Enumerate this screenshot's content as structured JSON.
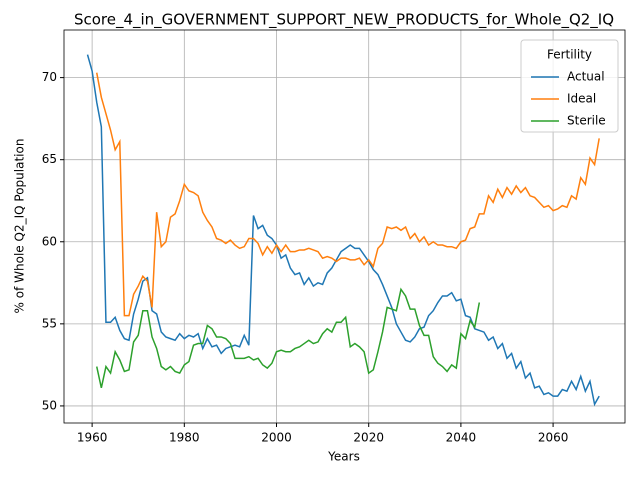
{
  "chart_data": {
    "type": "line",
    "title": "Score_4_in_GOVERNMENT_SUPPORT_NEW_PRODUCTS_for_Whole_Q2_IQ",
    "x_label": "Years",
    "y_label": "% of Whole Q2_IQ Population",
    "legend_title": "Fertility",
    "legend_position": "upper right",
    "grid": true,
    "xlim": [
      1953.9,
      2075.6
    ],
    "ylim": [
      48.96,
      72.9
    ],
    "xticks": [
      1960,
      1980,
      2000,
      2020,
      2040,
      2060
    ],
    "yticks": [
      50,
      55,
      60,
      65,
      70
    ],
    "x": [
      1959,
      1960,
      1961,
      1962,
      1963,
      1964,
      1965,
      1966,
      1967,
      1968,
      1969,
      1970,
      1971,
      1972,
      1973,
      1974,
      1975,
      1976,
      1977,
      1978,
      1979,
      1980,
      1981,
      1982,
      1983,
      1984,
      1985,
      1986,
      1987,
      1988,
      1989,
      1990,
      1991,
      1992,
      1993,
      1994,
      1995,
      1996,
      1997,
      1998,
      1999,
      2000,
      2001,
      2002,
      2003,
      2004,
      2005,
      2006,
      2007,
      2008,
      2009,
      2010,
      2011,
      2012,
      2013,
      2014,
      2015,
      2016,
      2017,
      2018,
      2019,
      2020,
      2021,
      2022,
      2023,
      2024,
      2025,
      2026,
      2027,
      2028,
      2029,
      2030,
      2031,
      2032,
      2033,
      2034,
      2035,
      2036,
      2037,
      2038,
      2039,
      2040,
      2041,
      2042,
      2043,
      2044,
      2045,
      2046,
      2047,
      2048,
      2049,
      2050,
      2051,
      2052,
      2053,
      2054,
      2055,
      2056,
      2057,
      2058,
      2059,
      2060,
      2061,
      2062,
      2063,
      2064,
      2065,
      2066,
      2067,
      2068,
      2069,
      2070
    ],
    "series": [
      {
        "name": "Actual",
        "color": "#1f77b4",
        "values": [
          71.4,
          70.4,
          68.5,
          67.0,
          55.1,
          55.1,
          55.4,
          54.6,
          54.1,
          54.0,
          55.6,
          56.5,
          57.6,
          57.8,
          55.8,
          55.6,
          54.5,
          54.2,
          54.1,
          54.0,
          54.4,
          54.1,
          54.3,
          54.2,
          54.4,
          53.5,
          54.1,
          53.6,
          53.7,
          53.2,
          53.5,
          53.6,
          53.7,
          53.6,
          54.3,
          53.7,
          61.6,
          60.8,
          61.0,
          60.4,
          60.2,
          59.8,
          59.0,
          59.2,
          58.4,
          58.0,
          58.1,
          57.4,
          57.8,
          57.3,
          57.5,
          57.4,
          58.1,
          58.4,
          58.9,
          59.4,
          59.6,
          59.8,
          59.6,
          59.6,
          59.2,
          58.8,
          58.3,
          58.0,
          57.4,
          56.7,
          56.0,
          55.0,
          54.5,
          54.0,
          53.9,
          54.2,
          54.7,
          54.8,
          55.5,
          55.8,
          56.3,
          56.7,
          56.7,
          56.9,
          56.4,
          56.5,
          55.5,
          55.4,
          54.7,
          54.6,
          54.5,
          54.0,
          54.2,
          53.5,
          53.8,
          52.9,
          53.2,
          52.3,
          52.7,
          51.7,
          52.0,
          51.1,
          51.2,
          50.7,
          50.8,
          50.6,
          50.6,
          51.0,
          50.9,
          51.5,
          51.0,
          51.8,
          50.9,
          51.5,
          50.1,
          50.6
        ]
      },
      {
        "name": "Ideal",
        "color": "#ff7f0e",
        "values": [
          null,
          null,
          70.3,
          68.8,
          67.8,
          66.8,
          65.6,
          66.1,
          55.5,
          55.5,
          56.8,
          57.3,
          57.9,
          57.6,
          56.0,
          61.8,
          59.7,
          60.0,
          61.5,
          61.7,
          62.5,
          63.5,
          63.1,
          63.0,
          62.8,
          61.8,
          61.3,
          60.9,
          60.2,
          60.1,
          59.9,
          60.1,
          59.8,
          59.6,
          59.7,
          60.2,
          60.2,
          59.9,
          59.2,
          59.7,
          59.3,
          59.8,
          59.4,
          59.8,
          59.4,
          59.4,
          59.5,
          59.5,
          59.6,
          59.5,
          59.4,
          59.0,
          59.1,
          59.0,
          58.8,
          59.0,
          59.0,
          58.9,
          58.9,
          59.0,
          58.6,
          58.9,
          58.5,
          59.6,
          59.9,
          60.9,
          60.8,
          60.9,
          60.7,
          60.9,
          60.2,
          60.5,
          60.0,
          60.3,
          59.8,
          60.0,
          59.8,
          59.8,
          59.7,
          59.7,
          59.6,
          60.0,
          60.1,
          60.8,
          60.9,
          61.7,
          61.7,
          62.8,
          62.4,
          63.2,
          62.7,
          63.3,
          62.9,
          63.4,
          63.0,
          63.3,
          62.8,
          62.7,
          62.4,
          62.1,
          62.2,
          61.9,
          62.0,
          62.2,
          62.1,
          62.8,
          62.6,
          63.9,
          63.5,
          65.1,
          64.7,
          66.3
        ]
      },
      {
        "name": "Sterile",
        "color": "#2ca02c",
        "values": [
          null,
          null,
          52.4,
          51.1,
          52.4,
          52.0,
          53.3,
          52.8,
          52.1,
          52.2,
          53.9,
          54.3,
          55.8,
          55.8,
          54.2,
          53.5,
          52.4,
          52.2,
          52.4,
          52.1,
          52.0,
          52.5,
          52.7,
          53.7,
          53.8,
          53.8,
          54.9,
          54.7,
          54.2,
          54.2,
          54.1,
          53.8,
          52.9,
          52.9,
          52.9,
          53.0,
          52.8,
          52.9,
          52.5,
          52.3,
          52.6,
          53.3,
          53.4,
          53.3,
          53.3,
          53.5,
          53.6,
          53.8,
          54.0,
          53.8,
          53.9,
          54.4,
          54.7,
          54.5,
          55.1,
          55.1,
          55.4,
          53.6,
          53.8,
          53.6,
          53.3,
          52.0,
          52.2,
          53.3,
          54.5,
          56.0,
          55.9,
          55.8,
          57.1,
          56.7,
          55.9,
          55.9,
          54.9,
          54.3,
          54.3,
          53.0,
          52.6,
          52.4,
          52.1,
          52.5,
          52.3,
          54.4,
          54.1,
          55.2,
          54.8,
          56.3,
          null,
          null,
          null,
          null,
          null,
          null,
          null,
          null,
          null,
          null,
          null,
          null,
          null,
          null,
          null,
          null,
          null,
          null,
          null,
          null,
          null,
          null,
          null,
          null,
          null,
          null
        ]
      }
    ]
  }
}
